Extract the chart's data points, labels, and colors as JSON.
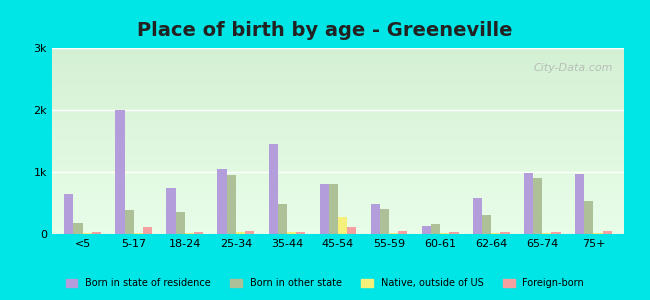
{
  "title": "Place of birth by age - Greeneville",
  "categories": [
    "<5",
    "5-17",
    "18-24",
    "25-34",
    "35-44",
    "45-54",
    "55-59",
    "60-61",
    "62-64",
    "65-74",
    "75+"
  ],
  "series": {
    "Born in state of residence": [
      650,
      2000,
      750,
      1050,
      1450,
      800,
      480,
      130,
      580,
      980,
      960
    ],
    "Born in other state": [
      180,
      380,
      360,
      950,
      480,
      800,
      400,
      160,
      310,
      900,
      530
    ],
    "Native, outside of US": [
      20,
      20,
      20,
      30,
      30,
      270,
      20,
      20,
      20,
      20,
      20
    ],
    "Foreign-born": [
      40,
      120,
      40,
      50,
      40,
      120,
      50,
      30,
      30,
      40,
      50
    ]
  },
  "colors": {
    "Born in state of residence": "#b39ddb",
    "Born in other state": "#aec098",
    "Native, outside of US": "#f5f07a",
    "Foreign-born": "#f4a0a0"
  },
  "ylim": [
    0,
    3000
  ],
  "yticks": [
    0,
    1000,
    2000,
    3000
  ],
  "ytick_labels": [
    "0",
    "1k",
    "2k",
    "3k"
  ],
  "background_top": "#d4f0d4",
  "background_bottom": "#e8fde8",
  "outer_background": "#00e5e5",
  "title_fontsize": 14,
  "watermark": "City-Data.com"
}
